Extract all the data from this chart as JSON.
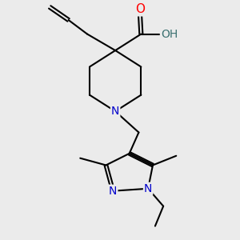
{
  "bg_color": "#ebebeb",
  "atom_colors": {
    "C": "#000000",
    "N": "#0000cc",
    "O": "#ff0000",
    "H": "#3a7070"
  },
  "bond_color": "#000000",
  "bond_width": 1.5,
  "font_size_atom": 10,
  "figsize": [
    3.0,
    3.0
  ],
  "dpi": 100
}
